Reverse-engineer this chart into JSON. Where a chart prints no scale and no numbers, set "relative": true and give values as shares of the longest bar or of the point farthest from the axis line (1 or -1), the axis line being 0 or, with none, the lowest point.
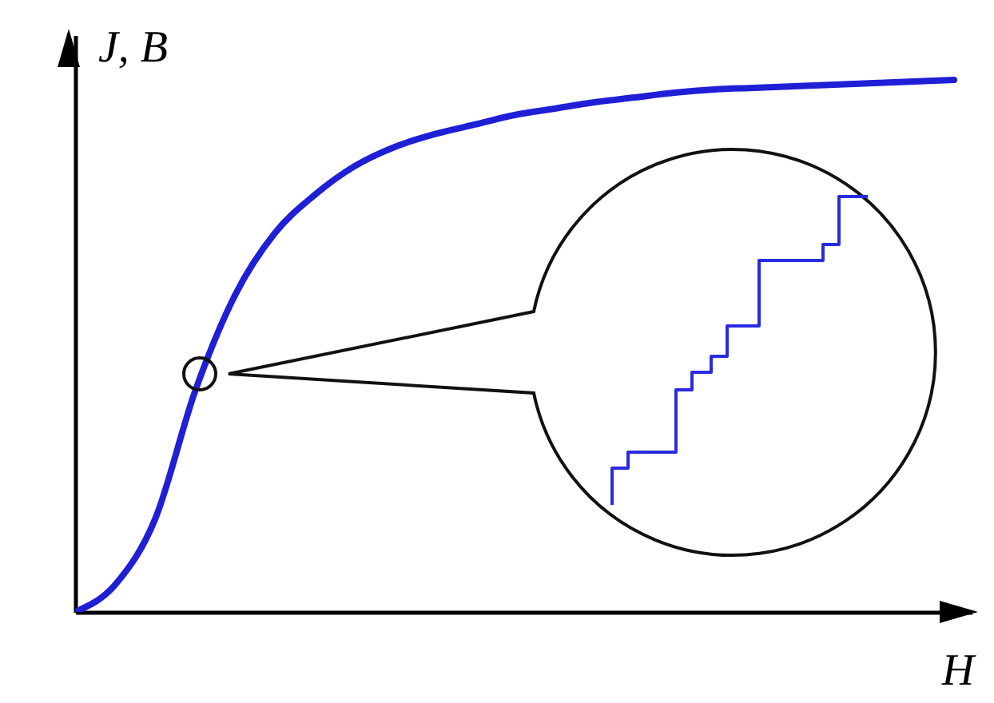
{
  "chart_data": {
    "type": "line",
    "relative": true,
    "xlabel": "H",
    "ylabel": "J, B",
    "categories": [
      null,
      null,
      null,
      null,
      null,
      null,
      null,
      null,
      null,
      null,
      null,
      null,
      null,
      null,
      null,
      null,
      null,
      null,
      null,
      null,
      null,
      null,
      null
    ],
    "series": [
      {
        "color": "#1f1fd6",
        "values": [
          0,
          0.051,
          0.174,
          0.414,
          0.595,
          0.712,
          0.784,
          0.838,
          0.874,
          0.898,
          0.916,
          0.934,
          0.946,
          0.958,
          0.967,
          0.976,
          0.982,
          0.985,
          0.988,
          0.991,
          0.994,
          0.997,
          1
        ]
      }
    ]
  }
}
